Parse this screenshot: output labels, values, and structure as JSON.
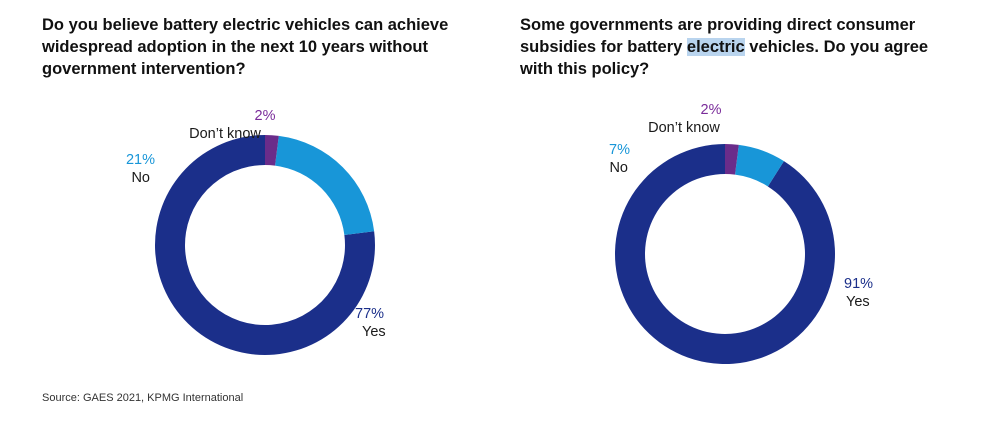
{
  "titles": {
    "left": "Do you believe battery electric vehicles can achieve widespread adoption in the next 10 years without government intervention?",
    "right_before": "Some governments are providing direct consumer subsidies for battery ",
    "right_highlight": "electric",
    "right_after": " vehicles. Do you agree with this policy?"
  },
  "source": "Source: GAES 2021, KPMG International",
  "colors": {
    "yes": "#1b2f8a",
    "no": "#1896d8",
    "dont_know": "#6a2c8a"
  },
  "chart_data": [
    {
      "type": "pie",
      "style": "donut",
      "title": "Do you believe battery electric vehicles can achieve widespread adoption in the next 10 years without government intervention?",
      "categories": [
        "Yes",
        "No",
        "Don't know"
      ],
      "values": [
        77,
        21,
        2
      ],
      "labels": {
        "yes": {
          "pct": "77%",
          "name": "Yes"
        },
        "no": {
          "pct": "21%",
          "name": "No"
        },
        "dont_know": {
          "pct": "2%",
          "name": "Don’t know"
        }
      }
    },
    {
      "type": "pie",
      "style": "donut",
      "title": "Some governments are providing direct consumer subsidies for battery electric vehicles. Do you agree with this policy?",
      "categories": [
        "Yes",
        "No",
        "Don't know"
      ],
      "values": [
        91,
        7,
        2
      ],
      "labels": {
        "yes": {
          "pct": "91%",
          "name": "Yes"
        },
        "no": {
          "pct": "7%",
          "name": "No"
        },
        "dont_know": {
          "pct": "2%",
          "name": "Don’t know"
        }
      }
    }
  ]
}
